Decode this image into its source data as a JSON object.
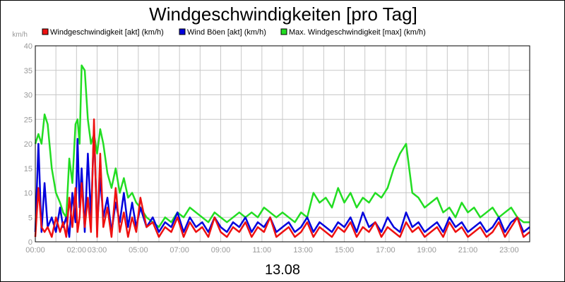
{
  "chart_data": {
    "type": "line",
    "title": "Windgeschwindigkeiten [pro Tag]",
    "subtitle": "13.08",
    "ylabel": "km/h",
    "xlabel": "",
    "ylim": [
      0,
      40
    ],
    "y_ticks": [
      0,
      5,
      10,
      15,
      20,
      25,
      30,
      35,
      40
    ],
    "xlim": [
      0,
      24
    ],
    "x_ticks": [
      {
        "value": 0,
        "label": "00:00"
      },
      {
        "value": 2,
        "label": "02:00"
      },
      {
        "value": 3,
        "label": "03:00"
      },
      {
        "value": 5,
        "label": "05:00"
      },
      {
        "value": 7,
        "label": "07:00"
      },
      {
        "value": 9,
        "label": "09:00"
      },
      {
        "value": 11,
        "label": "11:00"
      },
      {
        "value": 13,
        "label": "13:00"
      },
      {
        "value": 15,
        "label": "15:00"
      },
      {
        "value": 17,
        "label": "17:00"
      },
      {
        "value": 19,
        "label": "19:00"
      },
      {
        "value": 21,
        "label": "21:00"
      },
      {
        "value": 23,
        "label": "23:00"
      }
    ],
    "grid": true,
    "legend_position": "top",
    "series": [
      {
        "name": "Windgeschwindigkeit [akt] (km/h)",
        "color": "#ee1111",
        "x": [
          0,
          0.15,
          0.3,
          0.45,
          0.6,
          0.8,
          1,
          1.2,
          1.35,
          1.5,
          1.65,
          1.8,
          1.95,
          2.05,
          2.15,
          2.25,
          2.4,
          2.55,
          2.7,
          2.85,
          3,
          3.15,
          3.3,
          3.5,
          3.7,
          3.9,
          4.1,
          4.3,
          4.5,
          4.7,
          4.9,
          5.1,
          5.4,
          5.7,
          6,
          6.3,
          6.6,
          6.9,
          7.2,
          7.5,
          7.8,
          8.1,
          8.4,
          8.7,
          9,
          9.3,
          9.6,
          9.9,
          10.2,
          10.5,
          10.8,
          11.1,
          11.4,
          11.7,
          12,
          12.3,
          12.6,
          12.9,
          13.2,
          13.5,
          13.8,
          14.1,
          14.4,
          14.7,
          15,
          15.3,
          15.6,
          15.9,
          16.2,
          16.5,
          16.8,
          17.1,
          17.4,
          17.7,
          18,
          18.3,
          18.6,
          18.9,
          19.2,
          19.5,
          19.8,
          20.1,
          20.4,
          20.7,
          21,
          21.3,
          21.6,
          21.9,
          22.2,
          22.5,
          22.8,
          23.1,
          23.4,
          23.7,
          24
        ],
        "values": [
          1,
          11,
          3,
          2,
          3,
          1,
          5,
          2,
          4,
          1,
          9,
          3,
          11,
          2,
          5,
          12,
          3,
          9,
          2,
          25,
          1,
          18,
          3,
          7,
          1,
          11,
          2,
          6,
          1,
          5,
          2,
          9,
          3,
          4,
          1,
          3,
          2,
          5,
          1,
          4,
          2,
          3,
          1,
          5,
          2,
          1,
          3,
          2,
          4,
          1,
          3,
          2,
          5,
          1,
          2,
          3,
          1,
          2,
          4,
          1,
          3,
          2,
          1,
          3,
          2,
          4,
          1,
          3,
          2,
          4,
          1,
          3,
          2,
          1,
          4,
          2,
          3,
          1,
          2,
          3,
          1,
          4,
          2,
          3,
          1,
          2,
          3,
          1,
          2,
          4,
          1,
          3,
          5,
          1,
          2
        ]
      },
      {
        "name": "Wind Böen [akt] (km/h)",
        "color": "#0000dd",
        "x": [
          0,
          0.15,
          0.3,
          0.45,
          0.6,
          0.8,
          1,
          1.2,
          1.35,
          1.5,
          1.65,
          1.8,
          1.95,
          2.05,
          2.15,
          2.25,
          2.4,
          2.55,
          2.7,
          2.85,
          3,
          3.15,
          3.3,
          3.5,
          3.7,
          3.9,
          4.1,
          4.3,
          4.5,
          4.7,
          4.9,
          5.1,
          5.4,
          5.7,
          6,
          6.3,
          6.6,
          6.9,
          7.2,
          7.5,
          7.8,
          8.1,
          8.4,
          8.7,
          9,
          9.3,
          9.6,
          9.9,
          10.2,
          10.5,
          10.8,
          11.1,
          11.4,
          11.7,
          12,
          12.3,
          12.6,
          12.9,
          13.2,
          13.5,
          13.8,
          14.1,
          14.4,
          14.7,
          15,
          15.3,
          15.6,
          15.9,
          16.2,
          16.5,
          16.8,
          17.1,
          17.4,
          17.7,
          18,
          18.3,
          18.6,
          18.9,
          19.2,
          19.5,
          19.8,
          20.1,
          20.4,
          20.7,
          21,
          21.3,
          21.6,
          21.9,
          22.2,
          22.5,
          22.8,
          23.1,
          23.4,
          23.7,
          24
        ],
        "values": [
          2,
          20,
          2,
          12,
          3,
          5,
          2,
          7,
          3,
          5,
          1,
          10,
          4,
          21,
          7,
          15,
          2,
          18,
          5,
          23,
          3,
          13,
          5,
          9,
          2,
          8,
          4,
          10,
          3,
          8,
          3,
          7,
          3,
          5,
          2,
          4,
          3,
          6,
          2,
          5,
          3,
          4,
          2,
          5,
          3,
          2,
          4,
          3,
          5,
          2,
          4,
          3,
          5,
          2,
          3,
          4,
          2,
          3,
          5,
          2,
          4,
          3,
          2,
          4,
          3,
          5,
          2,
          6,
          3,
          4,
          2,
          5,
          3,
          2,
          6,
          3,
          4,
          2,
          3,
          4,
          2,
          5,
          3,
          4,
          2,
          3,
          4,
          2,
          3,
          5,
          2,
          4,
          5,
          2,
          3
        ]
      },
      {
        "name": "Max. Windgeschwindigkeit [max] (km/h)",
        "color": "#22dd22",
        "x": [
          0,
          0.15,
          0.3,
          0.45,
          0.6,
          0.8,
          1,
          1.2,
          1.35,
          1.5,
          1.65,
          1.8,
          1.95,
          2.05,
          2.15,
          2.25,
          2.4,
          2.55,
          2.7,
          2.85,
          3,
          3.15,
          3.3,
          3.5,
          3.7,
          3.9,
          4.1,
          4.3,
          4.5,
          4.7,
          4.9,
          5.1,
          5.4,
          5.7,
          6,
          6.3,
          6.6,
          6.9,
          7.2,
          7.5,
          7.8,
          8.1,
          8.4,
          8.7,
          9,
          9.3,
          9.6,
          9.9,
          10.2,
          10.5,
          10.8,
          11.1,
          11.4,
          11.7,
          12,
          12.3,
          12.6,
          12.9,
          13.2,
          13.5,
          13.8,
          14.1,
          14.4,
          14.7,
          15,
          15.3,
          15.6,
          15.9,
          16.2,
          16.5,
          16.8,
          17.1,
          17.4,
          17.7,
          18,
          18.3,
          18.6,
          18.9,
          19.2,
          19.5,
          19.8,
          20.1,
          20.4,
          20.7,
          21,
          21.3,
          21.6,
          21.9,
          22.2,
          22.5,
          22.8,
          23.1,
          23.4,
          23.7,
          24
        ],
        "values": [
          20,
          22,
          20,
          26,
          24,
          15,
          10,
          8,
          6,
          5,
          17,
          12,
          24,
          25,
          20,
          36,
          35,
          25,
          20,
          22,
          18,
          23,
          20,
          14,
          11,
          15,
          10,
          13,
          9,
          10,
          8,
          7,
          5,
          4,
          3,
          5,
          4,
          6,
          5,
          7,
          6,
          5,
          4,
          6,
          5,
          4,
          5,
          6,
          5,
          6,
          5,
          7,
          6,
          5,
          6,
          5,
          4,
          6,
          5,
          10,
          8,
          9,
          7,
          11,
          8,
          10,
          7,
          9,
          8,
          10,
          9,
          11,
          15,
          18,
          20,
          10,
          9,
          7,
          8,
          9,
          6,
          7,
          5,
          8,
          6,
          7,
          5,
          6,
          7,
          5,
          6,
          7,
          5,
          4,
          4
        ]
      }
    ]
  }
}
